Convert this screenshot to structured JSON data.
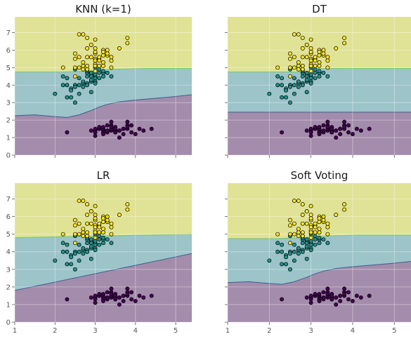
{
  "chart_data": {
    "type": "scatter",
    "xlim": [
      1,
      5.4
    ],
    "ylim": [
      0,
      7.9
    ],
    "xticks": [
      1,
      2,
      3,
      4,
      5
    ],
    "yticks": [
      0,
      1,
      2,
      3,
      4,
      5,
      6,
      7
    ],
    "grid": true,
    "class_colors": {
      "class_0": "#440154",
      "class_1": "#21918c",
      "class_2": "#fde725"
    },
    "region_colors": {
      "class_0": "#a48cac",
      "class_1": "#9cc4c9",
      "class_2": "#e0e296"
    },
    "points": {
      "class_0": [
        [
          2.3,
          1.3
        ],
        [
          2.9,
          1.4
        ],
        [
          3.0,
          1.4
        ],
        [
          3.0,
          1.3
        ],
        [
          3.1,
          1.5
        ],
        [
          3.1,
          1.5
        ],
        [
          3.2,
          1.4
        ],
        [
          3.2,
          1.5
        ],
        [
          3.2,
          1.3
        ],
        [
          3.2,
          1.6
        ],
        [
          3.3,
          1.4
        ],
        [
          3.3,
          1.7
        ],
        [
          3.3,
          1.3
        ],
        [
          3.4,
          1.5
        ],
        [
          3.4,
          1.4
        ],
        [
          3.4,
          1.5
        ],
        [
          3.4,
          1.7
        ],
        [
          3.4,
          1.6
        ],
        [
          3.5,
          1.4
        ],
        [
          3.5,
          1.3
        ],
        [
          3.5,
          1.6
        ],
        [
          3.5,
          1.5
        ],
        [
          3.6,
          1.4
        ],
        [
          3.6,
          1.0
        ],
        [
          3.7,
          1.5
        ],
        [
          3.7,
          1.5
        ],
        [
          3.8,
          1.7
        ],
        [
          3.8,
          1.5
        ],
        [
          3.8,
          1.9
        ],
        [
          3.8,
          1.6
        ],
        [
          3.9,
          1.7
        ],
        [
          3.9,
          1.3
        ],
        [
          4.0,
          1.2
        ],
        [
          4.1,
          1.5
        ],
        [
          4.2,
          1.4
        ],
        [
          4.4,
          1.5
        ],
        [
          3.0,
          1.1
        ],
        [
          3.1,
          1.6
        ],
        [
          3.2,
          1.2
        ],
        [
          3.4,
          1.9
        ],
        [
          3.6,
          1.4
        ],
        [
          3.5,
          1.3
        ],
        [
          3.0,
          1.5
        ],
        [
          3.3,
          1.4
        ],
        [
          3.7,
          1.2
        ]
      ],
      "class_1": [
        [
          2.0,
          3.5
        ],
        [
          2.2,
          4.5
        ],
        [
          2.2,
          4.0
        ],
        [
          2.3,
          4.4
        ],
        [
          2.3,
          4.0
        ],
        [
          2.4,
          3.3
        ],
        [
          2.4,
          3.8
        ],
        [
          2.5,
          4.0
        ],
        [
          2.5,
          3.9
        ],
        [
          2.5,
          3.0
        ],
        [
          2.6,
          4.4
        ],
        [
          2.6,
          4.0
        ],
        [
          2.6,
          3.5
        ],
        [
          2.7,
          4.1
        ],
        [
          2.7,
          3.9
        ],
        [
          2.7,
          5.1
        ],
        [
          2.8,
          4.7
        ],
        [
          2.8,
          4.5
        ],
        [
          2.8,
          4.1
        ],
        [
          2.9,
          4.6
        ],
        [
          2.9,
          4.2
        ],
        [
          2.9,
          3.6
        ],
        [
          2.9,
          4.7
        ],
        [
          2.9,
          4.3
        ],
        [
          3.0,
          4.2
        ],
        [
          3.0,
          4.5
        ],
        [
          3.0,
          4.1
        ],
        [
          3.0,
          4.4
        ],
        [
          3.1,
          4.9
        ],
        [
          3.1,
          4.4
        ],
        [
          3.1,
          4.7
        ],
        [
          3.2,
          4.7
        ],
        [
          3.2,
          4.5
        ],
        [
          3.3,
          4.7
        ],
        [
          3.4,
          4.5
        ],
        [
          2.8,
          4.0
        ],
        [
          2.7,
          4.2
        ],
        [
          2.9,
          4.5
        ],
        [
          3.0,
          5.0
        ],
        [
          2.5,
          4.9
        ],
        [
          2.4,
          3.7
        ],
        [
          2.3,
          3.3
        ],
        [
          3.2,
          4.8
        ],
        [
          2.8,
          4.8
        ],
        [
          3.0,
          4.6
        ]
      ],
      "class_2": [
        [
          2.2,
          5.0
        ],
        [
          2.5,
          5.8
        ],
        [
          2.5,
          4.5
        ],
        [
          2.5,
          5.0
        ],
        [
          2.6,
          6.9
        ],
        [
          2.6,
          5.6
        ],
        [
          2.7,
          5.1
        ],
        [
          2.7,
          5.3
        ],
        [
          2.7,
          4.9
        ],
        [
          2.8,
          6.7
        ],
        [
          2.8,
          5.6
        ],
        [
          2.8,
          5.1
        ],
        [
          2.8,
          4.9
        ],
        [
          2.8,
          6.1
        ],
        [
          2.9,
          6.3
        ],
        [
          2.9,
          5.6
        ],
        [
          3.0,
          5.8
        ],
        [
          3.0,
          6.6
        ],
        [
          3.0,
          5.5
        ],
        [
          3.0,
          5.9
        ],
        [
          3.0,
          6.1
        ],
        [
          3.0,
          5.2
        ],
        [
          3.0,
          4.8
        ],
        [
          3.0,
          5.1
        ],
        [
          3.1,
          5.5
        ],
        [
          3.1,
          5.6
        ],
        [
          3.1,
          5.4
        ],
        [
          3.2,
          6.0
        ],
        [
          3.2,
          5.7
        ],
        [
          3.2,
          5.3
        ],
        [
          3.2,
          5.9
        ],
        [
          3.3,
          6.0
        ],
        [
          3.3,
          5.7
        ],
        [
          3.4,
          5.4
        ],
        [
          3.4,
          5.6
        ],
        [
          3.6,
          6.1
        ],
        [
          3.8,
          6.7
        ],
        [
          3.8,
          6.4
        ],
        [
          2.9,
          6.3
        ],
        [
          3.0,
          5.4
        ],
        [
          3.1,
          5.1
        ],
        [
          3.3,
          5.8
        ],
        [
          2.8,
          4.9
        ],
        [
          3.2,
          5.1
        ],
        [
          3.4,
          5.0
        ],
        [
          2.7,
          6.9
        ],
        [
          2.6,
          5.0
        ],
        [
          2.5,
          5.5
        ]
      ]
    },
    "panels": [
      {
        "title": "KNN (k=1)",
        "boundaries": {
          "lower": [
            [
              1,
              2.25
            ],
            [
              1.5,
              2.3
            ],
            [
              2.0,
              2.2
            ],
            [
              2.3,
              2.15
            ],
            [
              2.6,
              2.3
            ],
            [
              2.9,
              2.55
            ],
            [
              3.1,
              2.75
            ],
            [
              3.3,
              2.9
            ],
            [
              3.6,
              3.05
            ],
            [
              4.0,
              3.15
            ],
            [
              4.5,
              3.25
            ],
            [
              5.0,
              3.35
            ],
            [
              5.4,
              3.45
            ]
          ],
          "upper": [
            [
              1,
              4.75
            ],
            [
              2.2,
              4.75
            ],
            [
              2.8,
              4.8
            ],
            [
              3.4,
              4.9
            ],
            [
              4.2,
              4.95
            ],
            [
              5.4,
              4.95
            ]
          ]
        }
      },
      {
        "title": "DT",
        "boundaries": {
          "lower": [
            [
              1,
              2.45
            ],
            [
              5.4,
              2.45
            ]
          ],
          "upper": [
            [
              1,
              4.75
            ],
            [
              3.0,
              4.75
            ],
            [
              3.05,
              4.95
            ],
            [
              5.4,
              4.95
            ]
          ]
        }
      },
      {
        "title": "LR",
        "boundaries": {
          "lower": [
            [
              1,
              1.8
            ],
            [
              5.4,
              3.9
            ]
          ],
          "upper": [
            [
              1,
              4.8
            ],
            [
              5.4,
              5.0
            ]
          ]
        }
      },
      {
        "title": "Soft Voting",
        "boundaries": {
          "lower": [
            [
              1,
              2.25
            ],
            [
              1.5,
              2.3
            ],
            [
              2.0,
              2.2
            ],
            [
              2.3,
              2.15
            ],
            [
              2.6,
              2.3
            ],
            [
              2.9,
              2.55
            ],
            [
              3.1,
              2.75
            ],
            [
              3.3,
              2.9
            ],
            [
              3.6,
              3.05
            ],
            [
              4.0,
              3.15
            ],
            [
              4.5,
              3.25
            ],
            [
              5.0,
              3.35
            ],
            [
              5.4,
              3.45
            ]
          ],
          "upper": [
            [
              1,
              4.75
            ],
            [
              2.2,
              4.75
            ],
            [
              2.8,
              4.8
            ],
            [
              3.4,
              4.9
            ],
            [
              4.2,
              4.95
            ],
            [
              5.4,
              4.95
            ]
          ]
        }
      }
    ]
  }
}
